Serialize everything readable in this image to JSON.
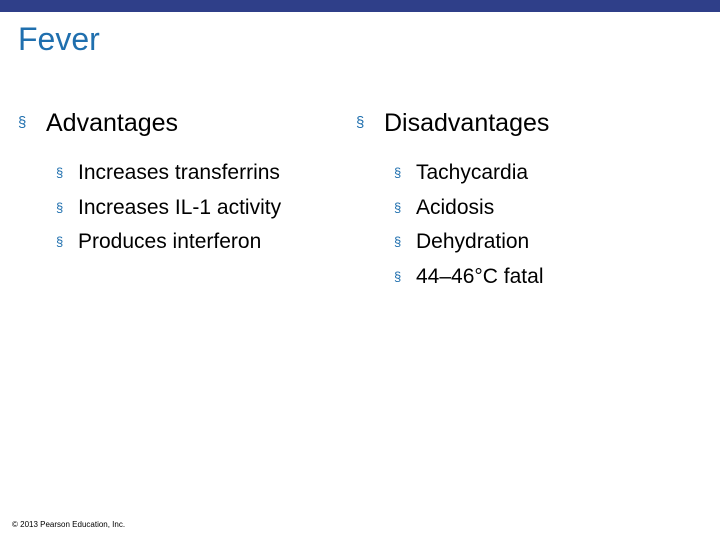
{
  "theme": {
    "top_bar_color": "#2f3f89",
    "title_color": "#1f6fae"
  },
  "slide": {
    "title": "Fever",
    "bullet_glyph": "§",
    "advantages": {
      "heading": "Advantages",
      "items": [
        "Increases transferrins",
        "Increases IL-1 activity",
        "Produces interferon"
      ]
    },
    "disadvantages": {
      "heading": "Disadvantages",
      "items": [
        "Tachycardia",
        "Acidosis",
        "Dehydration",
        "44–46°C fatal"
      ]
    },
    "footer": "© 2013 Pearson Education, Inc."
  }
}
